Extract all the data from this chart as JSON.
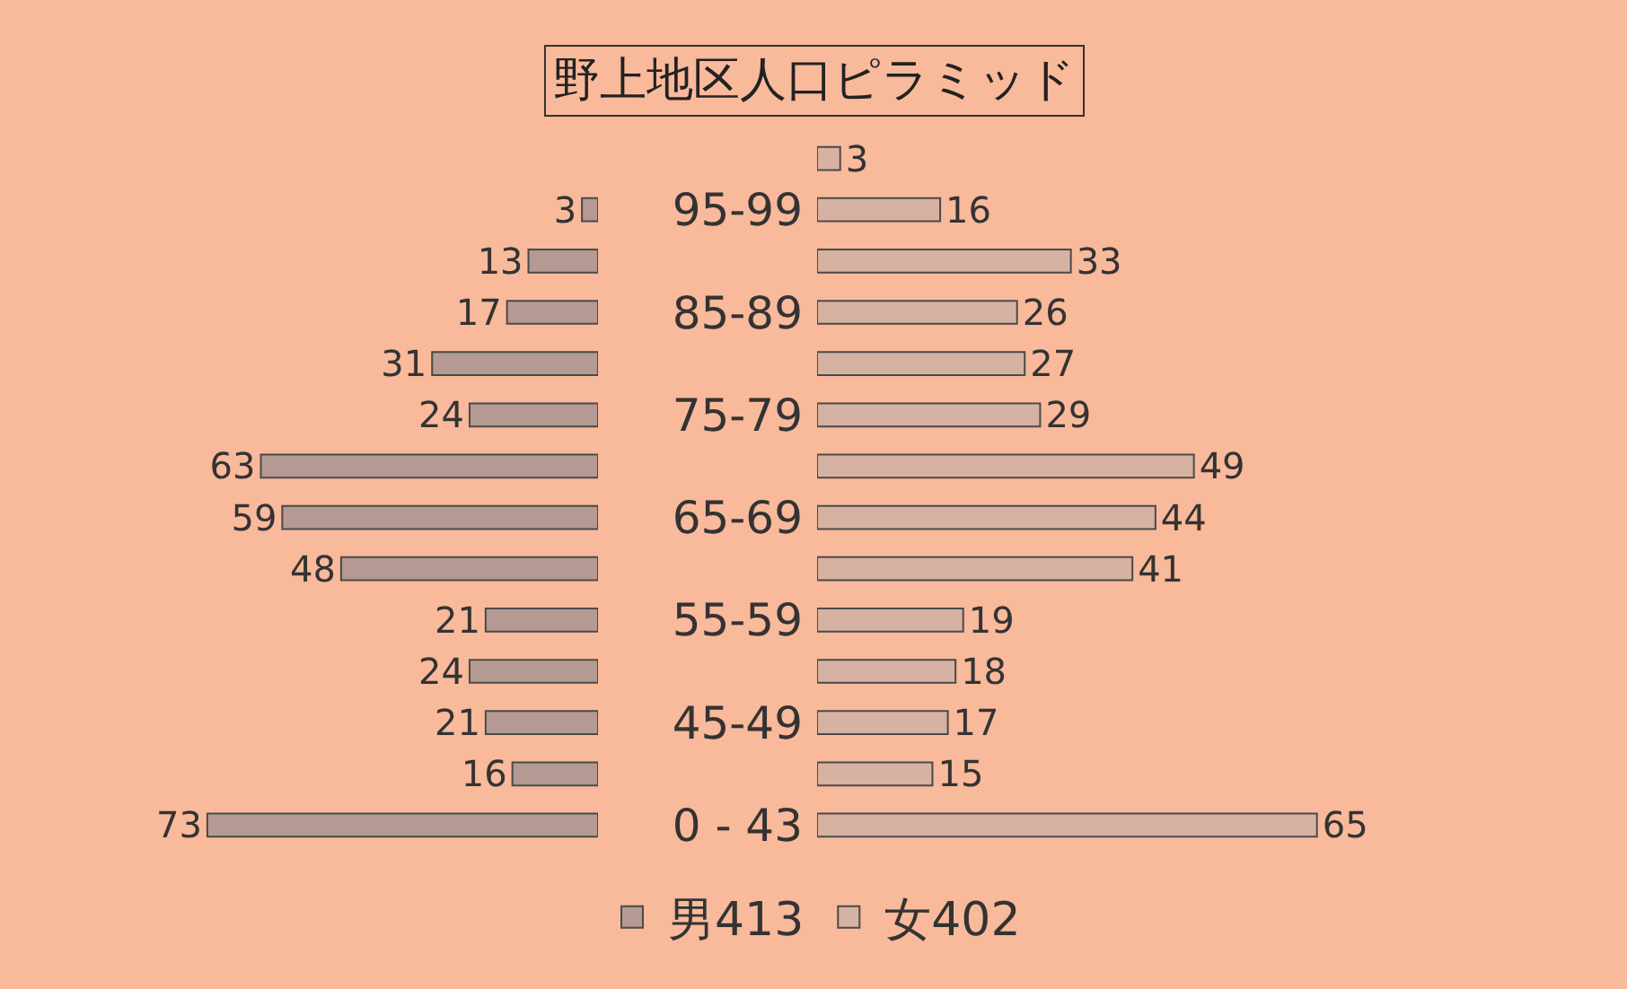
{
  "chart_data": [
    {
      "type": "bar",
      "orientation": "horizontal",
      "title": "野上地区人口ピラミッド",
      "categories": [
        null,
        "95-99",
        null,
        "85-89",
        null,
        "75-79",
        null,
        "65-69",
        null,
        "55-59",
        null,
        "45-49",
        null,
        "0 - 43"
      ],
      "series": [
        {
          "name": "男413",
          "color": "#b49a92",
          "values": [
            null,
            3,
            13,
            17,
            31,
            24,
            63,
            59,
            48,
            21,
            24,
            21,
            16,
            73
          ]
        }
      ],
      "tick_labels": "y",
      "data_labels": true,
      "legend": "bottom",
      "grid": false
    },
    {
      "type": "bar",
      "orientation": "horizontal",
      "categories": [
        null,
        null,
        null,
        null,
        null,
        null,
        null,
        null,
        null,
        null,
        null,
        null,
        null,
        null
      ],
      "series": [
        {
          "name": "女402",
          "color": "#d6b2a2",
          "values": [
            3,
            16,
            33,
            26,
            27,
            29,
            49,
            44,
            41,
            19,
            18,
            17,
            15,
            65
          ]
        }
      ],
      "tick_labels": false,
      "data_labels": true,
      "legend": "bottom",
      "grid": false
    }
  ]
}
